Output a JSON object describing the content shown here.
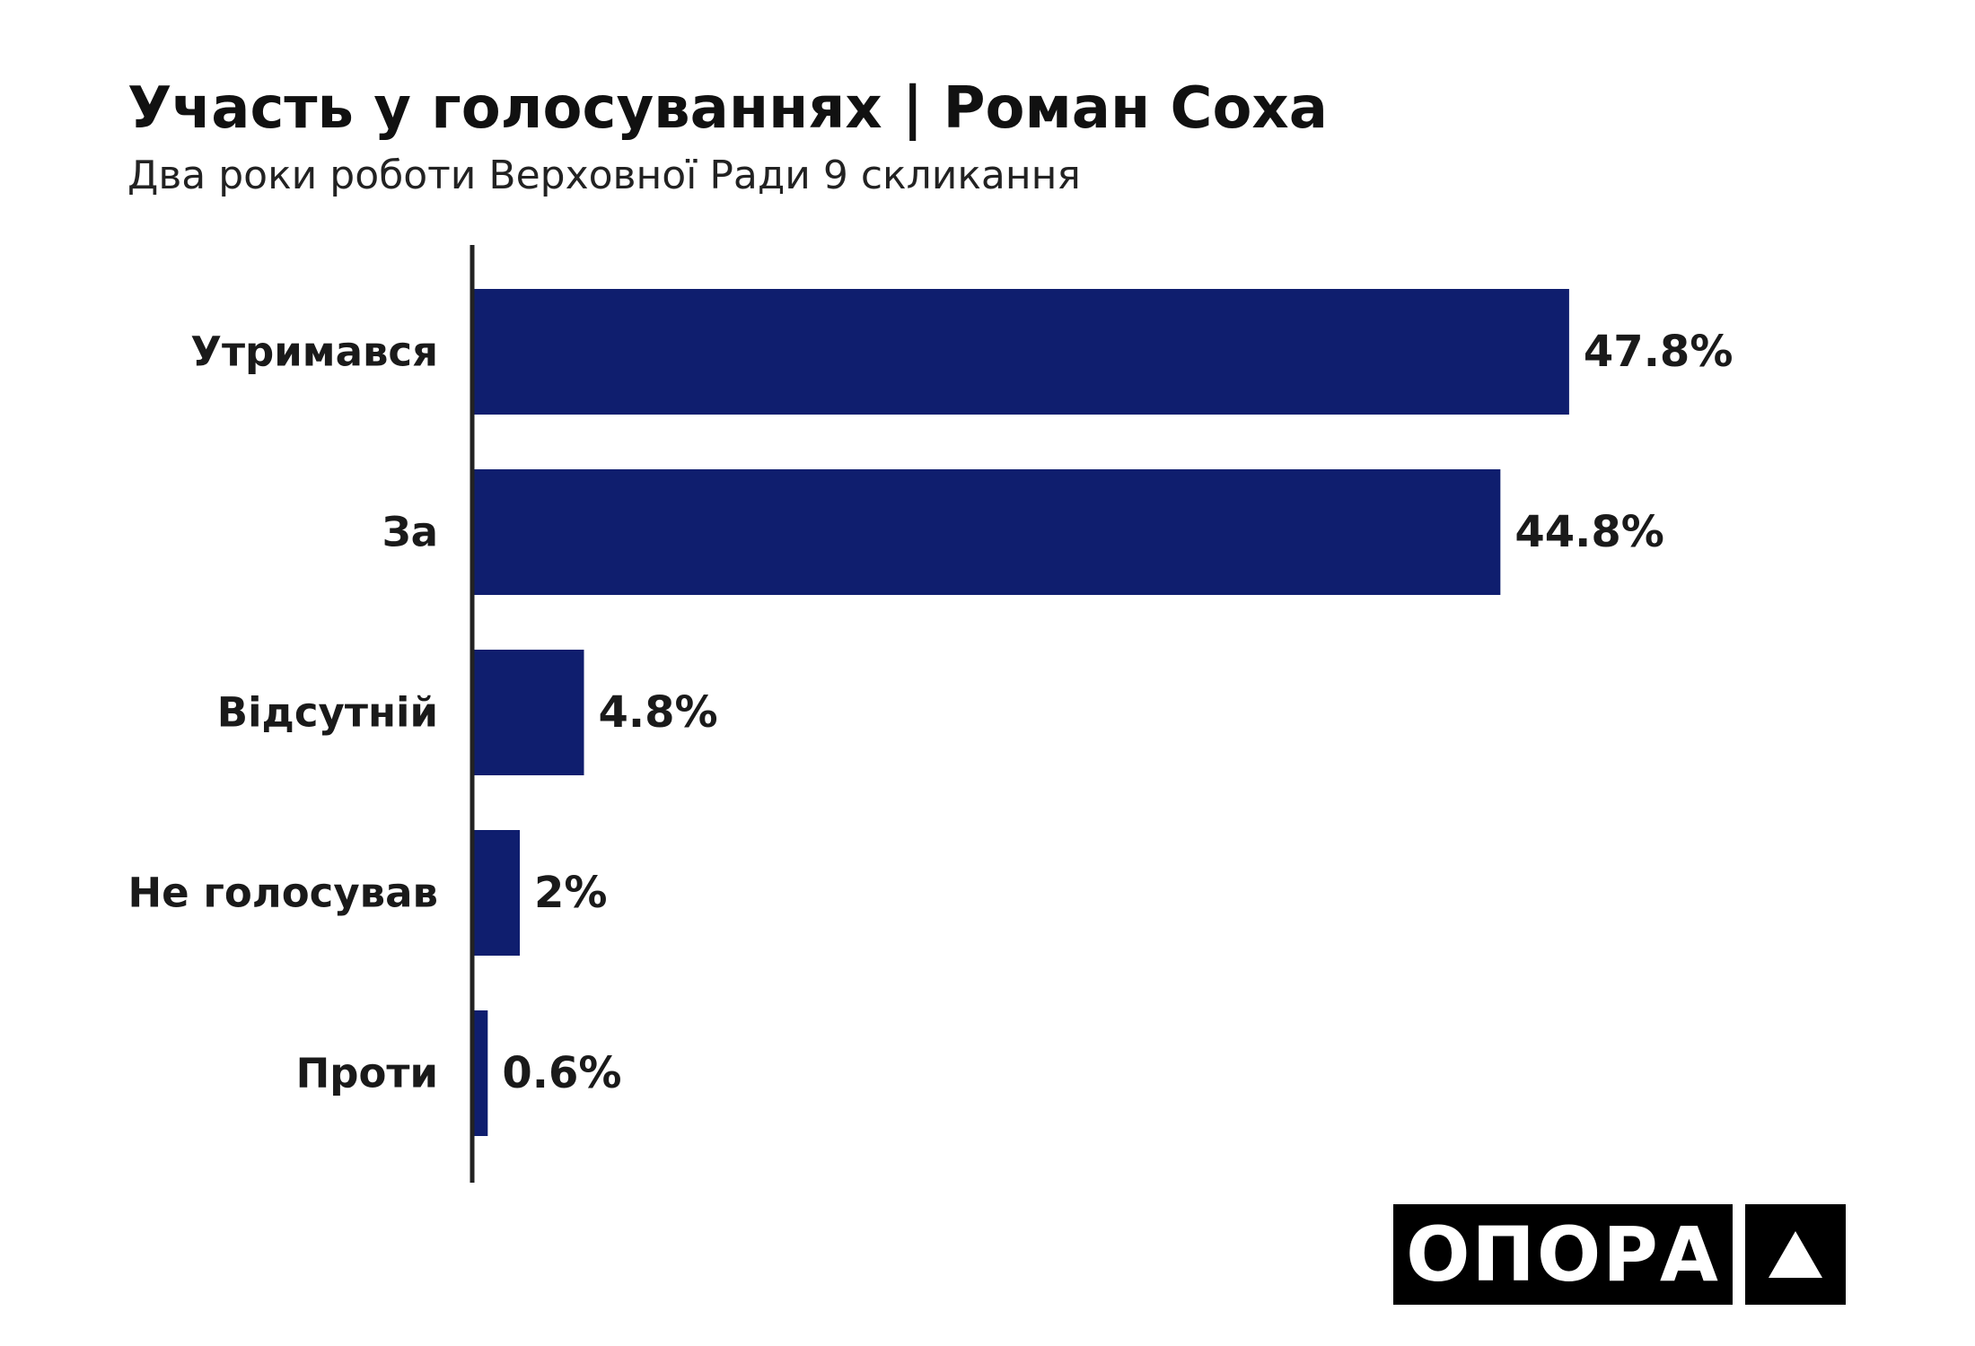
{
  "header": {
    "title": "Участь у голосуваннях | Роман Соха",
    "subtitle": "Два роки роботи Верховної Ради 9 скликання"
  },
  "chart_data": {
    "type": "bar",
    "orientation": "horizontal",
    "categories": [
      "Утримався",
      "За",
      "Відсутній",
      "Не голосував",
      "Проти"
    ],
    "values": [
      47.8,
      44.8,
      4.8,
      2,
      0.6
    ],
    "value_labels": [
      "47.8%",
      "44.8%",
      "4.8%",
      "2%",
      "0.6%"
    ],
    "unit": "%",
    "xlim": [
      0,
      48
    ],
    "grid": false,
    "legend": "none",
    "colors": {
      "bar": "#0f1e6e",
      "axis": "#222222",
      "text": "#1a1a1a"
    }
  },
  "logo": {
    "text": "ОПОРА",
    "mark": "triangle-icon"
  }
}
